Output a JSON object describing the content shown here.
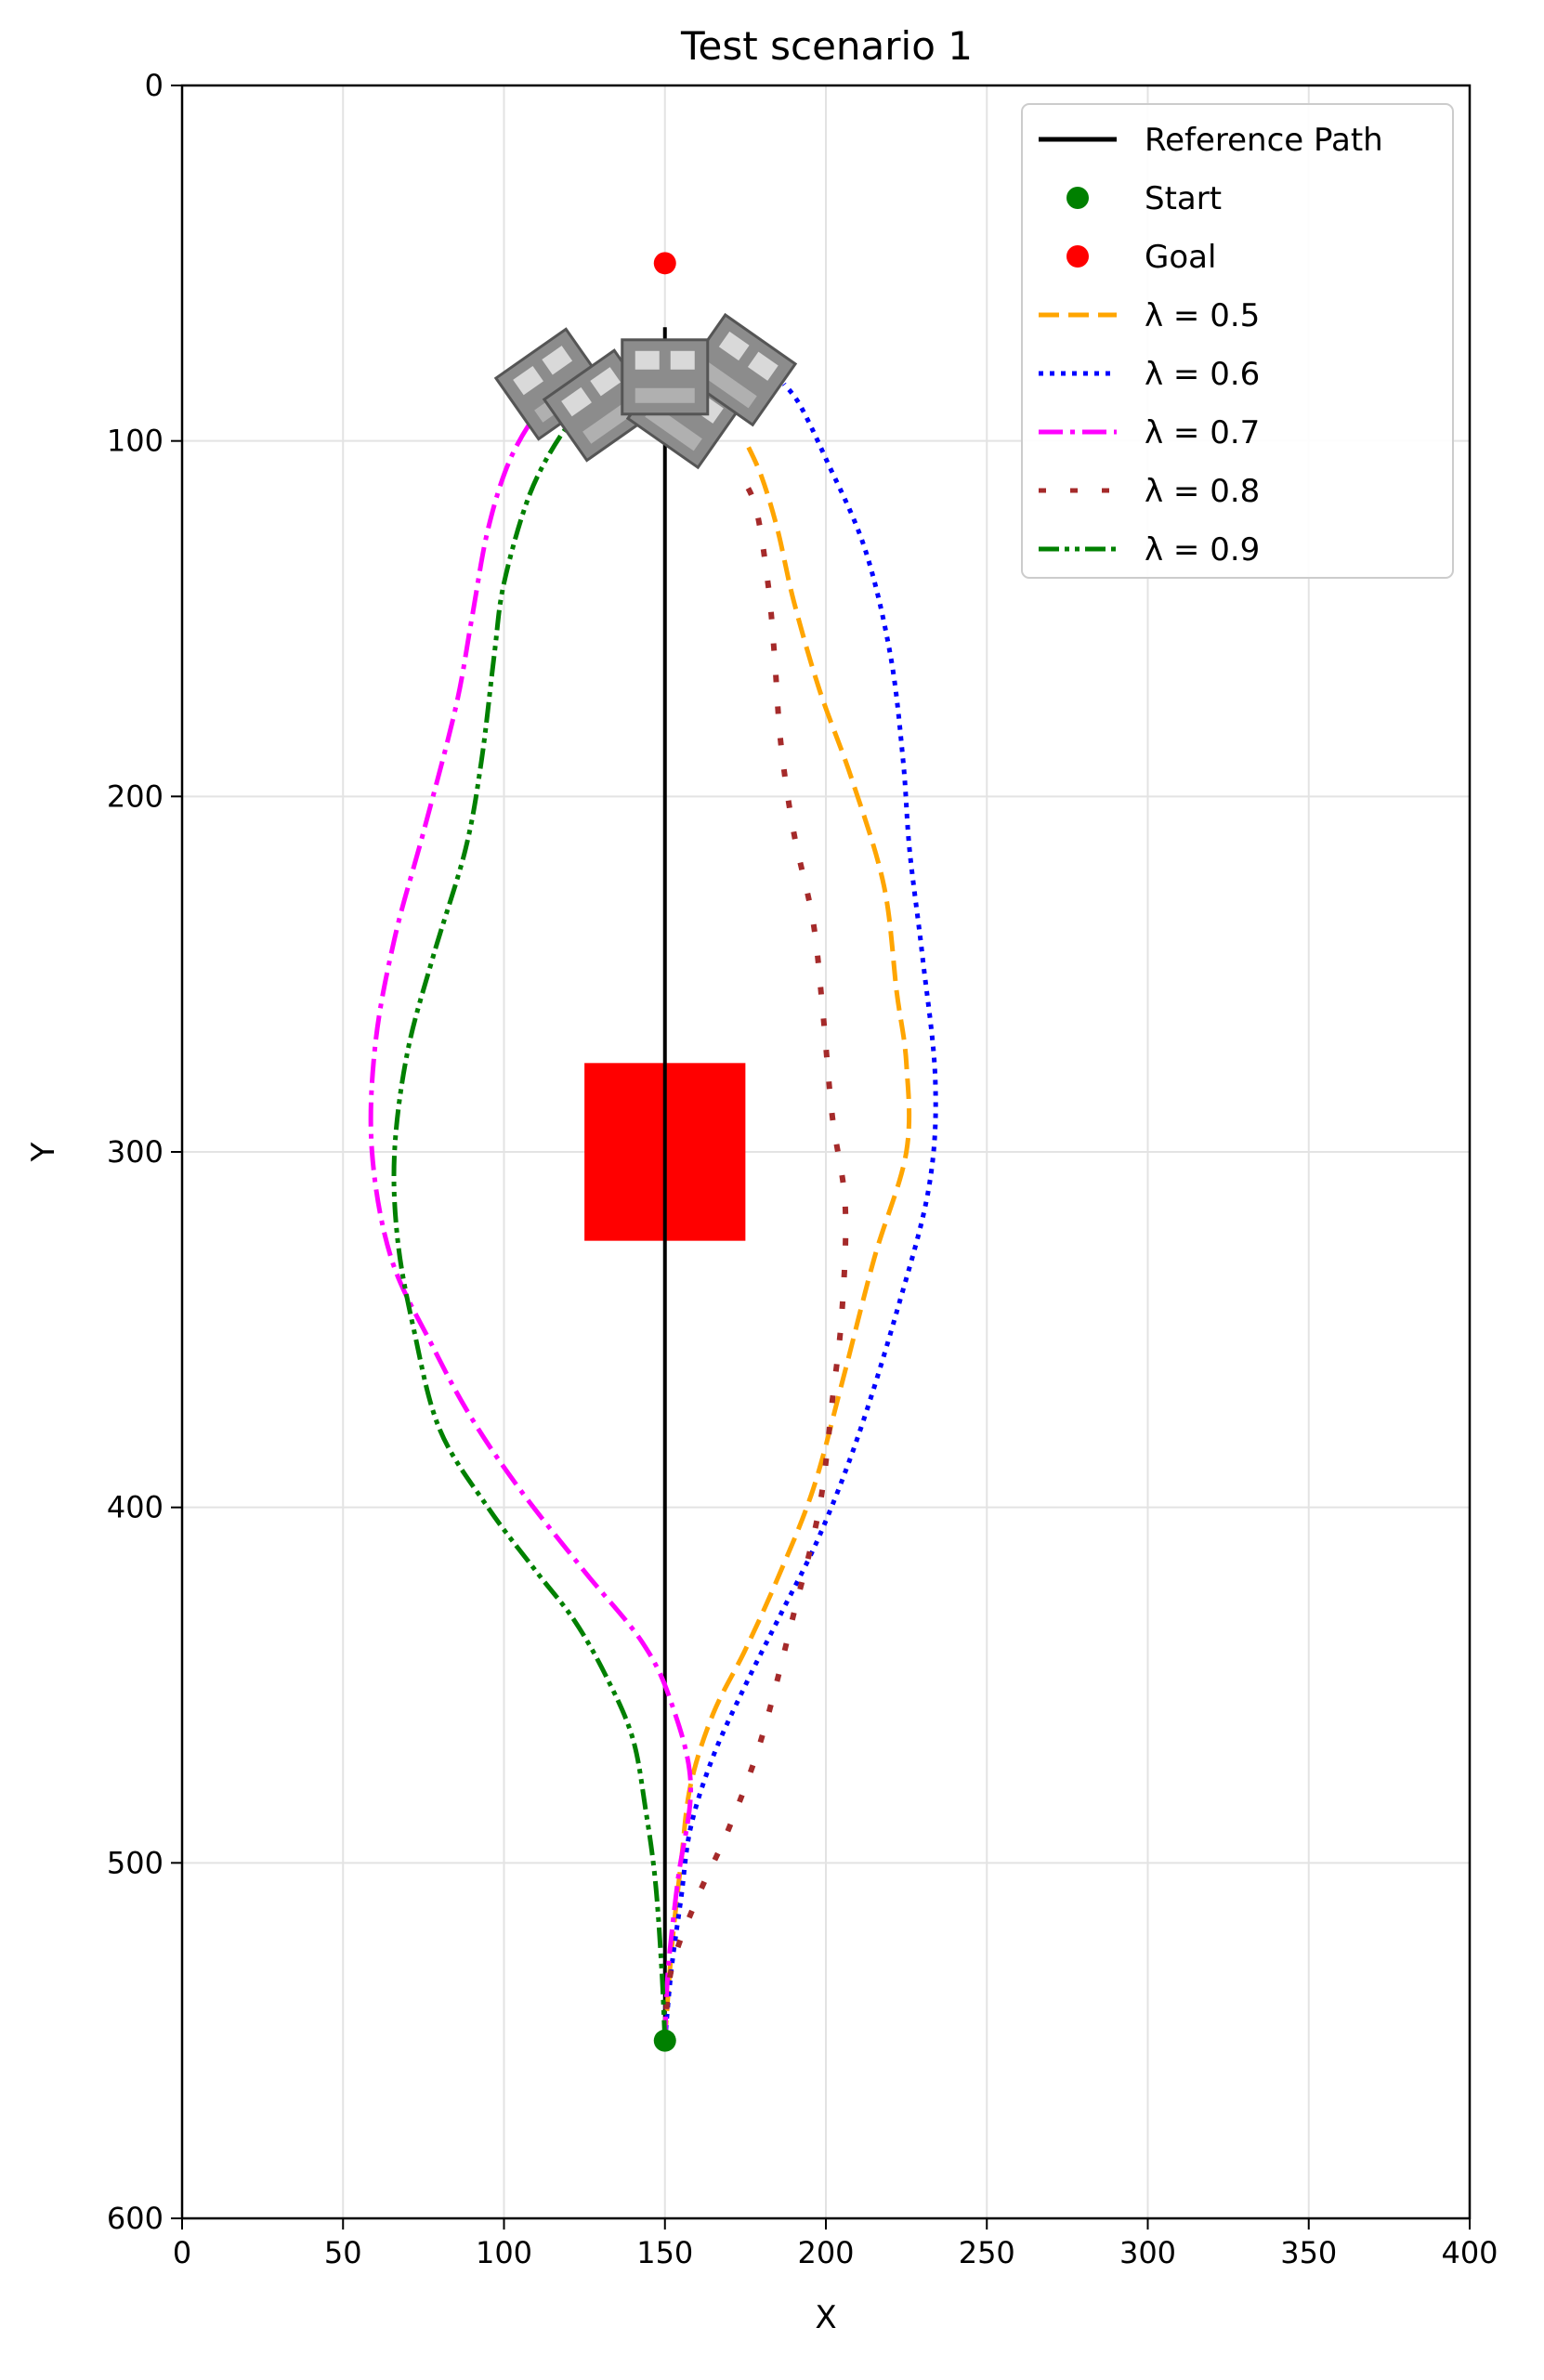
{
  "chart_data": {
    "type": "line",
    "title": "Test scenario 1",
    "xlabel": "X",
    "ylabel": "Y",
    "xlim": [
      0,
      400
    ],
    "ylim": [
      0,
      600
    ],
    "y_inverted": true,
    "grid": true,
    "legend_position": "top-right",
    "x_ticks": [
      "0",
      "50",
      "100",
      "150",
      "200",
      "250",
      "300",
      "350",
      "400"
    ],
    "y_ticks": [
      "0",
      "100",
      "200",
      "300",
      "400",
      "500",
      "600"
    ],
    "reference_path": {
      "name": "Reference Path",
      "color": "#000000",
      "points": [
        [
          150,
          550
        ],
        [
          150,
          68
        ]
      ]
    },
    "start": {
      "name": "Start",
      "color": "#008000",
      "x": 150,
      "y": 550
    },
    "goal": {
      "name": "Goal",
      "color": "#ff0000",
      "x": 150,
      "y": 50
    },
    "obstacle": {
      "color": "#ff0000",
      "x_range": [
        125,
        175
      ],
      "y_range": [
        275,
        325
      ]
    },
    "vehicles": {
      "color": "#8c8c8c",
      "icon": "car-icon",
      "count": 5
    },
    "series": [
      {
        "name": "λ = 0.5",
        "color": "#ffa500",
        "style": "dashed",
        "points": [
          [
            150,
            550
          ],
          [
            152,
            525
          ],
          [
            155,
            500
          ],
          [
            158,
            478
          ],
          [
            165,
            458
          ],
          [
            175,
            440
          ],
          [
            185,
            420
          ],
          [
            196,
            395
          ],
          [
            205,
            365
          ],
          [
            215,
            330
          ],
          [
            225,
            300
          ],
          [
            225,
            275
          ],
          [
            222,
            255
          ],
          [
            218,
            225
          ],
          [
            208,
            195
          ],
          [
            198,
            170
          ],
          [
            190,
            145
          ],
          [
            185,
            125
          ],
          [
            180,
            110
          ],
          [
            175,
            100
          ]
        ]
      },
      {
        "name": "λ = 0.6",
        "color": "#0000ff",
        "style": "dotted",
        "points": [
          [
            150,
            550
          ],
          [
            152,
            530
          ],
          [
            155,
            510
          ],
          [
            158,
            490
          ],
          [
            165,
            470
          ],
          [
            175,
            450
          ],
          [
            186,
            430
          ],
          [
            198,
            408
          ],
          [
            210,
            380
          ],
          [
            222,
            345
          ],
          [
            232,
            310
          ],
          [
            234,
            280
          ],
          [
            230,
            245
          ],
          [
            226,
            215
          ],
          [
            224,
            190
          ],
          [
            220,
            160
          ],
          [
            212,
            130
          ],
          [
            200,
            105
          ],
          [
            192,
            90
          ],
          [
            187,
            84
          ]
        ]
      },
      {
        "name": "λ = 0.7",
        "color": "#ff00ff",
        "style": "dashdot",
        "points": [
          [
            150,
            550
          ],
          [
            151,
            530
          ],
          [
            154,
            505
          ],
          [
            158,
            478
          ],
          [
            152,
            455
          ],
          [
            143,
            438
          ],
          [
            125,
            418
          ],
          [
            105,
            395
          ],
          [
            90,
            375
          ],
          [
            78,
            355
          ],
          [
            65,
            330
          ],
          [
            59,
            300
          ],
          [
            60,
            270
          ],
          [
            66,
            240
          ],
          [
            75,
            210
          ],
          [
            85,
            175
          ],
          [
            90,
            150
          ],
          [
            95,
            125
          ],
          [
            102,
            105
          ],
          [
            112,
            90
          ],
          [
            120,
            84
          ]
        ]
      },
      {
        "name": "λ = 0.8",
        "color": "#a52a2a",
        "style": "loosely dotted",
        "points": [
          [
            150,
            550
          ],
          [
            152,
            530
          ],
          [
            160,
            510
          ],
          [
            170,
            490
          ],
          [
            180,
            465
          ],
          [
            190,
            430
          ],
          [
            198,
            400
          ],
          [
            202,
            370
          ],
          [
            205,
            345
          ],
          [
            206,
            315
          ],
          [
            202,
            290
          ],
          [
            199,
            260
          ],
          [
            196,
            235
          ],
          [
            190,
            210
          ],
          [
            186,
            185
          ],
          [
            184,
            160
          ],
          [
            182,
            140
          ],
          [
            178,
            118
          ],
          [
            172,
            108
          ]
        ]
      },
      {
        "name": "λ = 0.9",
        "color": "#008000",
        "style": "dashdotdot",
        "points": [
          [
            150,
            550
          ],
          [
            149,
            530
          ],
          [
            147,
            505
          ],
          [
            144,
            485
          ],
          [
            140,
            465
          ],
          [
            132,
            448
          ],
          [
            122,
            432
          ],
          [
            110,
            418
          ],
          [
            95,
            400
          ],
          [
            80,
            378
          ],
          [
            72,
            350
          ],
          [
            67,
            325
          ],
          [
            66,
            300
          ],
          [
            70,
            272
          ],
          [
            78,
            245
          ],
          [
            88,
            215
          ],
          [
            93,
            190
          ],
          [
            97,
            160
          ],
          [
            100,
            140
          ],
          [
            108,
            115
          ],
          [
            118,
            98
          ],
          [
            125,
            92
          ]
        ]
      }
    ]
  }
}
